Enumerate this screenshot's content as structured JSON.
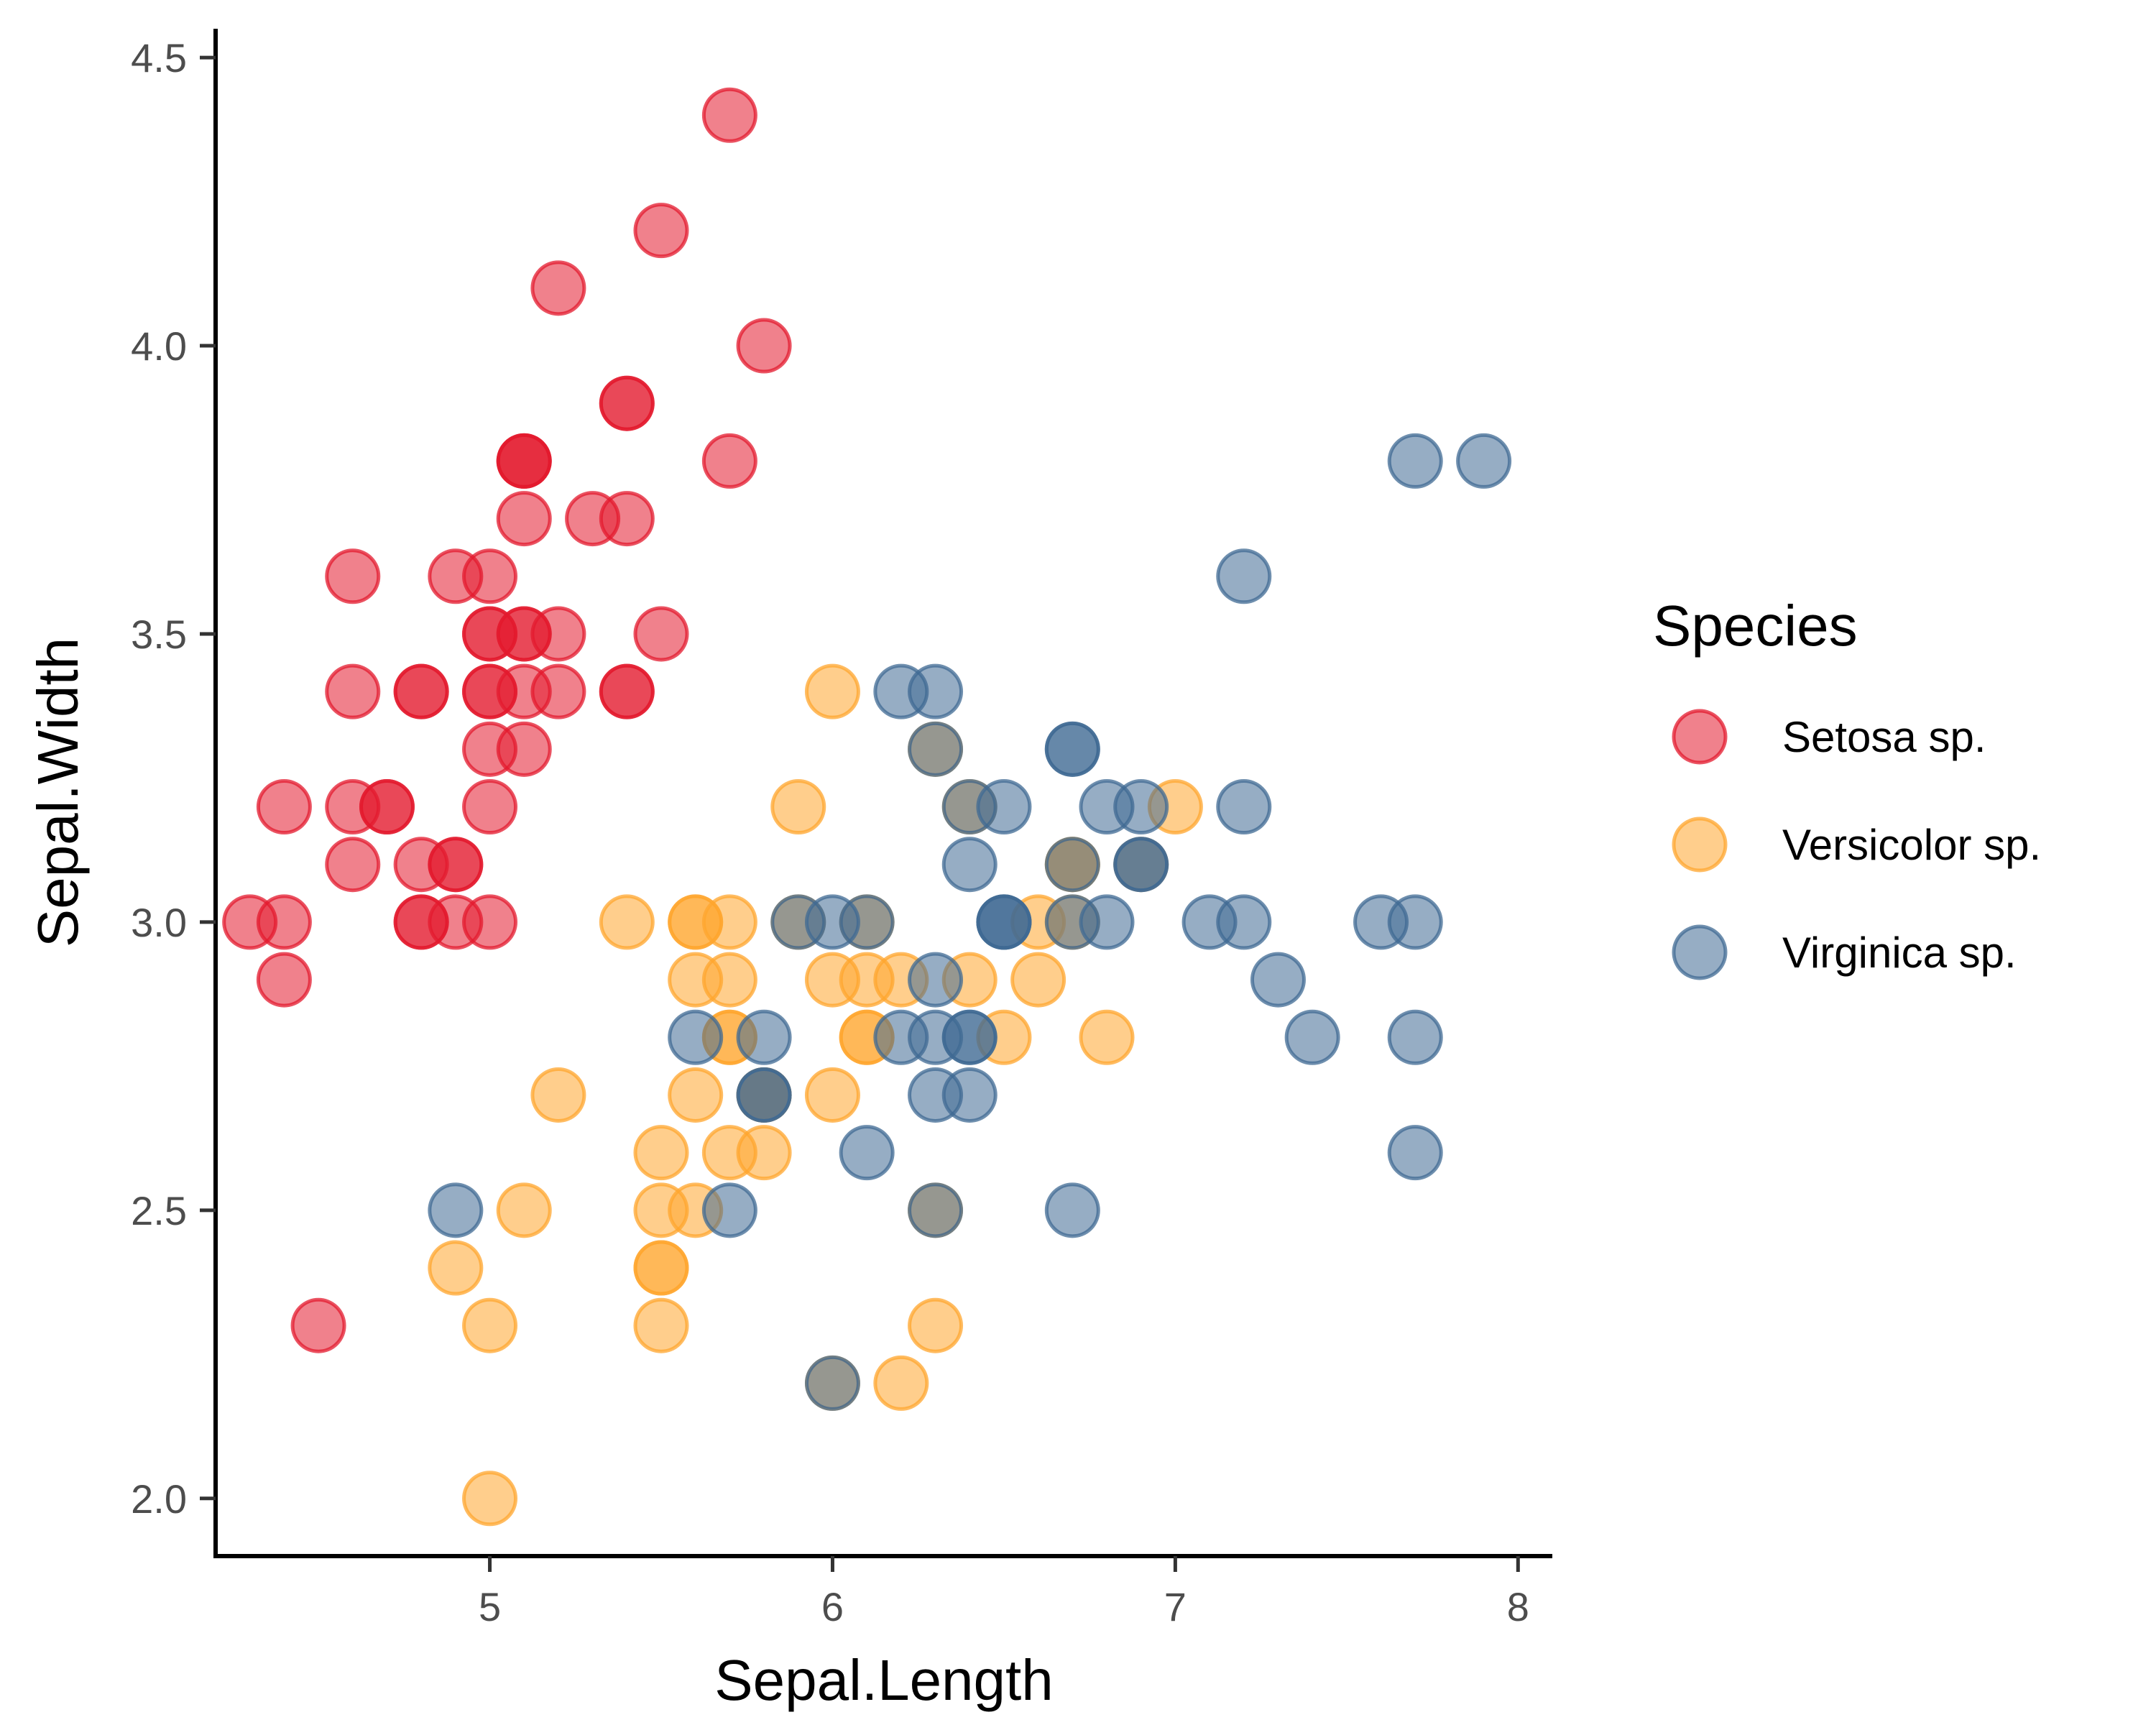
{
  "chart_data": {
    "type": "scatter",
    "xlabel": "Sepal.Length",
    "ylabel": "Sepal.Width",
    "xlim": [
      4.2,
      8.1
    ],
    "ylim": [
      1.9,
      4.55
    ],
    "x_ticks": [
      5,
      6,
      7,
      8
    ],
    "x_tick_labels": [
      "5",
      "6",
      "7",
      "8"
    ],
    "y_ticks": [
      2.0,
      2.5,
      3.0,
      3.5,
      4.0,
      4.5
    ],
    "y_tick_labels": [
      "2.0",
      "2.5",
      "3.0",
      "3.5",
      "4.0",
      "4.5"
    ],
    "grid": false,
    "legend": {
      "title": "Species",
      "placement": "right"
    },
    "series": [
      {
        "name": "Setosa sp.",
        "color": "#E31A2E",
        "points": [
          [
            5.1,
            3.5
          ],
          [
            4.9,
            3.0
          ],
          [
            4.7,
            3.2
          ],
          [
            4.6,
            3.1
          ],
          [
            5.0,
            3.6
          ],
          [
            5.4,
            3.9
          ],
          [
            4.6,
            3.4
          ],
          [
            5.0,
            3.4
          ],
          [
            4.4,
            2.9
          ],
          [
            4.9,
            3.1
          ],
          [
            5.4,
            3.7
          ],
          [
            4.8,
            3.4
          ],
          [
            4.8,
            3.0
          ],
          [
            4.3,
            3.0
          ],
          [
            5.8,
            4.0
          ],
          [
            5.7,
            4.4
          ],
          [
            5.4,
            3.9
          ],
          [
            5.1,
            3.5
          ],
          [
            5.7,
            3.8
          ],
          [
            5.1,
            3.8
          ],
          [
            5.4,
            3.4
          ],
          [
            5.1,
            3.7
          ],
          [
            4.6,
            3.6
          ],
          [
            5.1,
            3.3
          ],
          [
            4.8,
            3.4
          ],
          [
            5.0,
            3.0
          ],
          [
            5.0,
            3.4
          ],
          [
            5.2,
            3.5
          ],
          [
            5.2,
            3.4
          ],
          [
            4.7,
            3.2
          ],
          [
            4.8,
            3.1
          ],
          [
            5.4,
            3.4
          ],
          [
            5.2,
            4.1
          ],
          [
            5.5,
            4.2
          ],
          [
            4.9,
            3.1
          ],
          [
            5.0,
            3.2
          ],
          [
            5.5,
            3.5
          ],
          [
            4.9,
            3.6
          ],
          [
            4.4,
            3.0
          ],
          [
            5.1,
            3.4
          ],
          [
            5.0,
            3.5
          ],
          [
            4.5,
            2.3
          ],
          [
            4.4,
            3.2
          ],
          [
            5.0,
            3.5
          ],
          [
            5.1,
            3.8
          ],
          [
            4.8,
            3.0
          ],
          [
            5.1,
            3.8
          ],
          [
            4.6,
            3.2
          ],
          [
            5.3,
            3.7
          ],
          [
            5.0,
            3.3
          ]
        ]
      },
      {
        "name": "Versicolor sp.",
        "color": "#FFA62E",
        "points": [
          [
            7.0,
            3.2
          ],
          [
            6.4,
            3.2
          ],
          [
            6.9,
            3.1
          ],
          [
            5.5,
            2.3
          ],
          [
            6.5,
            2.8
          ],
          [
            5.7,
            2.8
          ],
          [
            6.3,
            3.3
          ],
          [
            4.9,
            2.4
          ],
          [
            6.6,
            2.9
          ],
          [
            5.2,
            2.7
          ],
          [
            5.0,
            2.0
          ],
          [
            5.9,
            3.0
          ],
          [
            6.0,
            2.2
          ],
          [
            6.1,
            2.9
          ],
          [
            5.6,
            2.9
          ],
          [
            6.7,
            3.1
          ],
          [
            5.6,
            3.0
          ],
          [
            5.8,
            2.7
          ],
          [
            6.2,
            2.2
          ],
          [
            5.6,
            2.5
          ],
          [
            5.9,
            3.2
          ],
          [
            6.1,
            2.8
          ],
          [
            6.3,
            2.5
          ],
          [
            6.1,
            2.8
          ],
          [
            6.4,
            2.9
          ],
          [
            6.6,
            3.0
          ],
          [
            6.8,
            2.8
          ],
          [
            6.7,
            3.0
          ],
          [
            6.0,
            2.9
          ],
          [
            5.7,
            2.6
          ],
          [
            5.5,
            2.4
          ],
          [
            5.5,
            2.4
          ],
          [
            5.8,
            2.7
          ],
          [
            6.0,
            2.7
          ],
          [
            5.4,
            3.0
          ],
          [
            6.0,
            3.4
          ],
          [
            6.7,
            3.1
          ],
          [
            6.3,
            2.3
          ],
          [
            5.6,
            3.0
          ],
          [
            5.5,
            2.5
          ],
          [
            5.5,
            2.6
          ],
          [
            6.1,
            3.0
          ],
          [
            5.8,
            2.6
          ],
          [
            5.0,
            2.3
          ],
          [
            5.6,
            2.7
          ],
          [
            5.7,
            3.0
          ],
          [
            5.7,
            2.9
          ],
          [
            6.2,
            2.9
          ],
          [
            5.1,
            2.5
          ],
          [
            5.7,
            2.8
          ]
        ]
      },
      {
        "name": "Virginica sp.",
        "color": "#3F6A93",
        "points": [
          [
            6.3,
            3.3
          ],
          [
            5.8,
            2.7
          ],
          [
            7.1,
            3.0
          ],
          [
            6.3,
            2.9
          ],
          [
            6.5,
            3.0
          ],
          [
            7.6,
            3.0
          ],
          [
            4.9,
            2.5
          ],
          [
            7.3,
            2.9
          ],
          [
            6.7,
            2.5
          ],
          [
            7.2,
            3.6
          ],
          [
            6.5,
            3.2
          ],
          [
            6.4,
            2.7
          ],
          [
            6.8,
            3.0
          ],
          [
            5.7,
            2.5
          ],
          [
            5.8,
            2.8
          ],
          [
            6.4,
            3.2
          ],
          [
            6.5,
            3.0
          ],
          [
            7.7,
            3.8
          ],
          [
            7.7,
            2.6
          ],
          [
            6.0,
            2.2
          ],
          [
            6.9,
            3.2
          ],
          [
            5.6,
            2.8
          ],
          [
            7.7,
            2.8
          ],
          [
            6.3,
            2.7
          ],
          [
            6.7,
            3.3
          ],
          [
            7.2,
            3.2
          ],
          [
            6.2,
            2.8
          ],
          [
            6.1,
            3.0
          ],
          [
            6.4,
            2.8
          ],
          [
            7.2,
            3.0
          ],
          [
            7.4,
            2.8
          ],
          [
            7.9,
            3.8
          ],
          [
            6.4,
            2.8
          ],
          [
            6.3,
            2.8
          ],
          [
            6.1,
            2.6
          ],
          [
            7.7,
            3.0
          ],
          [
            6.3,
            3.4
          ],
          [
            6.4,
            3.1
          ],
          [
            6.0,
            3.0
          ],
          [
            6.9,
            3.1
          ],
          [
            6.7,
            3.1
          ],
          [
            6.9,
            3.1
          ],
          [
            5.8,
            2.7
          ],
          [
            6.8,
            3.2
          ],
          [
            6.7,
            3.3
          ],
          [
            6.7,
            3.0
          ],
          [
            6.3,
            2.5
          ],
          [
            6.5,
            3.0
          ],
          [
            6.2,
            3.4
          ],
          [
            5.9,
            3.0
          ]
        ]
      }
    ]
  }
}
